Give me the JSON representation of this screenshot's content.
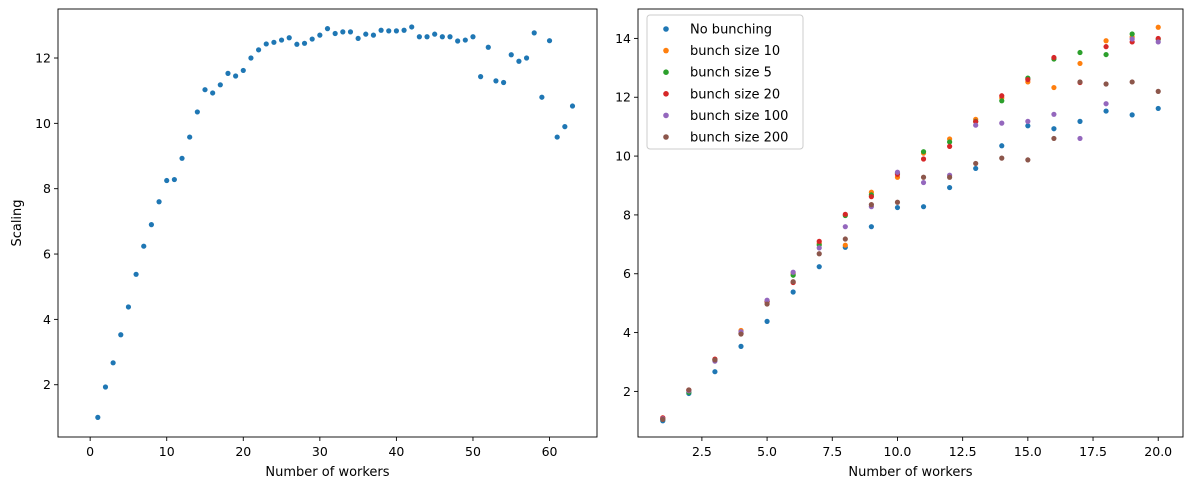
{
  "chart_data": [
    {
      "type": "scatter",
      "xlabel": "Number of workers",
      "ylabel": "Scaling",
      "xlim": [
        -4.2,
        66.2
      ],
      "ylim": [
        0.4,
        13.5
      ],
      "xticks": [
        0,
        10,
        20,
        30,
        40,
        50,
        60
      ],
      "yticks": [
        2,
        4,
        6,
        8,
        10,
        12
      ],
      "grid": false,
      "series": [
        {
          "color": "#1f77b4",
          "points": [
            [
              1,
              1.0
            ],
            [
              2,
              1.93
            ],
            [
              3,
              2.67
            ],
            [
              4,
              3.53
            ],
            [
              5,
              4.38
            ],
            [
              6,
              5.38
            ],
            [
              7,
              6.24
            ],
            [
              8,
              6.9
            ],
            [
              9,
              7.6
            ],
            [
              10,
              8.25
            ],
            [
              11,
              8.28
            ],
            [
              12,
              8.93
            ],
            [
              13,
              9.58
            ],
            [
              14,
              10.35
            ],
            [
              15,
              11.03
            ],
            [
              16,
              10.93
            ],
            [
              17,
              11.18
            ],
            [
              18,
              11.53
            ],
            [
              19,
              11.45
            ],
            [
              20,
              11.62
            ],
            [
              21,
              12.0
            ],
            [
              22,
              12.25
            ],
            [
              23,
              12.43
            ],
            [
              24,
              12.48
            ],
            [
              25,
              12.55
            ],
            [
              26,
              12.62
            ],
            [
              27,
              12.42
            ],
            [
              28,
              12.45
            ],
            [
              29,
              12.58
            ],
            [
              30,
              12.7
            ],
            [
              31,
              12.9
            ],
            [
              32,
              12.75
            ],
            [
              33,
              12.8
            ],
            [
              34,
              12.8
            ],
            [
              35,
              12.6
            ],
            [
              36,
              12.73
            ],
            [
              37,
              12.7
            ],
            [
              38,
              12.85
            ],
            [
              39,
              12.83
            ],
            [
              40,
              12.83
            ],
            [
              41,
              12.85
            ],
            [
              42,
              12.95
            ],
            [
              43,
              12.65
            ],
            [
              44,
              12.65
            ],
            [
              45,
              12.73
            ],
            [
              46,
              12.65
            ],
            [
              47,
              12.65
            ],
            [
              48,
              12.52
            ],
            [
              49,
              12.55
            ],
            [
              50,
              12.65
            ],
            [
              51,
              11.43
            ],
            [
              52,
              12.33
            ],
            [
              53,
              11.3
            ],
            [
              54,
              11.25
            ],
            [
              55,
              12.1
            ],
            [
              56,
              11.9
            ],
            [
              57,
              12.0
            ],
            [
              58,
              12.77
            ],
            [
              59,
              10.8
            ],
            [
              60,
              12.53
            ],
            [
              61,
              9.58
            ],
            [
              62,
              9.9
            ],
            [
              63,
              10.53
            ]
          ]
        }
      ]
    },
    {
      "type": "scatter",
      "xlabel": "Number of workers",
      "ylabel": "",
      "xlim": [
        0.05,
        20.95
      ],
      "ylim": [
        0.45,
        15.0
      ],
      "xticks": [
        2.5,
        5.0,
        7.5,
        10.0,
        12.5,
        15.0,
        17.5,
        20.0
      ],
      "xtick_labels": [
        "2.5",
        "5.0",
        "7.5",
        "10.0",
        "12.5",
        "15.0",
        "17.5",
        "20.0"
      ],
      "yticks": [
        2,
        4,
        6,
        8,
        10,
        12,
        14
      ],
      "grid": false,
      "legend_position": "top-left",
      "x": [
        1,
        2,
        3,
        4,
        5,
        6,
        7,
        8,
        9,
        10,
        11,
        12,
        13,
        14,
        15,
        16,
        17,
        18,
        19,
        20
      ],
      "series": [
        {
          "name": "No bunching",
          "color": "#1f77b4",
          "values": [
            1.0,
            1.93,
            2.67,
            3.53,
            4.38,
            5.38,
            6.24,
            6.9,
            7.6,
            8.25,
            8.28,
            8.93,
            9.58,
            10.35,
            11.03,
            10.93,
            11.18,
            11.53,
            11.4,
            11.62
          ]
        },
        {
          "name": "bunch size 10",
          "color": "#ff7f0e",
          "values": [
            1.1,
            2.03,
            3.07,
            4.07,
            5.07,
            6.0,
            7.03,
            6.97,
            8.77,
            9.28,
            10.1,
            10.58,
            11.25,
            11.98,
            12.52,
            12.33,
            13.15,
            13.92,
            14.05,
            14.38
          ]
        },
        {
          "name": "bunch size 5",
          "color": "#2ca02c",
          "values": [
            1.05,
            1.97,
            3.07,
            3.97,
            5.05,
            5.95,
            6.98,
            7.98,
            8.68,
            9.42,
            10.15,
            10.48,
            11.18,
            11.88,
            12.65,
            13.3,
            13.52,
            13.45,
            14.15,
            13.97
          ]
        },
        {
          "name": "bunch size 20",
          "color": "#d62728",
          "values": [
            1.1,
            2.05,
            3.1,
            3.98,
            5.05,
            5.7,
            7.1,
            8.02,
            8.62,
            9.38,
            9.9,
            10.33,
            11.17,
            12.05,
            12.6,
            13.35,
            12.5,
            13.72,
            13.88,
            14.0
          ]
        },
        {
          "name": "bunch size 100",
          "color": "#9467bd",
          "values": [
            1.07,
            2.02,
            3.03,
            4.03,
            5.1,
            6.05,
            6.88,
            7.6,
            8.28,
            9.45,
            9.1,
            9.35,
            11.05,
            11.12,
            11.18,
            11.42,
            10.6,
            11.78,
            13.98,
            13.88
          ]
        },
        {
          "name": "bunch size 200",
          "color": "#8c564b",
          "values": [
            1.05,
            2.05,
            3.07,
            3.95,
            4.97,
            5.73,
            6.68,
            7.18,
            8.35,
            8.43,
            9.28,
            9.28,
            9.75,
            9.93,
            9.87,
            10.6,
            12.52,
            12.45,
            12.52,
            12.2
          ]
        }
      ]
    }
  ]
}
